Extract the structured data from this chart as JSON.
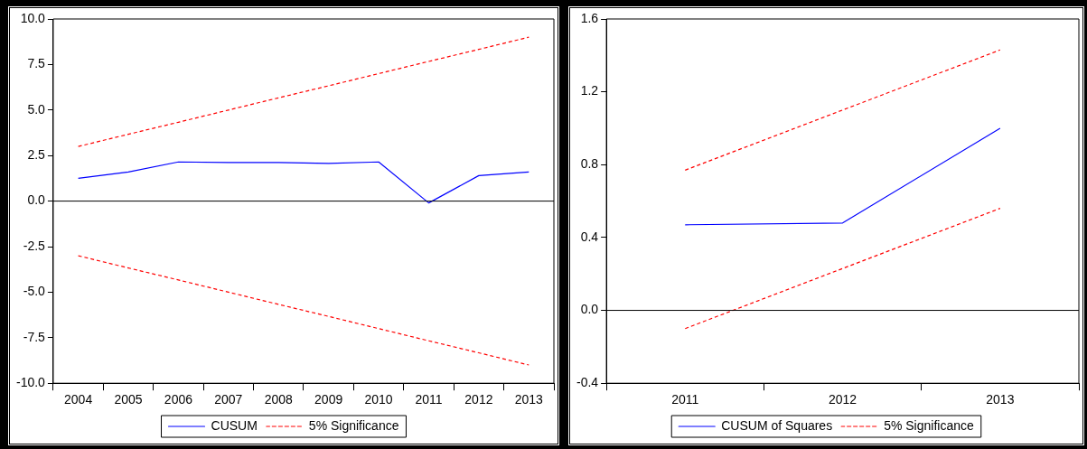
{
  "chart_data": [
    {
      "type": "line",
      "categories": [
        "2004",
        "2005",
        "2006",
        "2007",
        "2008",
        "2009",
        "2010",
        "2011",
        "2012",
        "2013"
      ],
      "series": [
        {
          "name": "CUSUM",
          "color": "#0000ff",
          "line_style": "solid",
          "values": [
            1.25,
            1.6,
            2.15,
            2.12,
            2.12,
            2.07,
            2.15,
            -0.1,
            1.4,
            1.6
          ]
        },
        {
          "name": "5% Significance",
          "color": "#ff0000",
          "line_style": "dashed",
          "values": [
            3.0,
            3.67,
            4.33,
            5.0,
            5.67,
            6.33,
            7.0,
            7.67,
            8.33,
            9.0
          ]
        },
        {
          "color": "#ff0000",
          "line_style": "dashed",
          "values": [
            -3.0,
            -3.67,
            -4.33,
            -5.0,
            -5.67,
            -6.33,
            -7.0,
            -7.67,
            -8.33,
            -9.0
          ]
        }
      ],
      "ylim": [
        -10,
        10
      ],
      "yticks": [
        {
          "value": -10,
          "label": "-10.0"
        },
        {
          "value": -7.5,
          "label": "-7.5"
        },
        {
          "value": -5,
          "label": "-5.0"
        },
        {
          "value": -2.5,
          "label": "-2.5"
        },
        {
          "value": 0,
          "label": "0.0"
        },
        {
          "value": 2.5,
          "label": "2.5"
        },
        {
          "value": 5,
          "label": "5.0"
        },
        {
          "value": 7.5,
          "label": "7.5"
        },
        {
          "value": 10,
          "label": "10.0"
        }
      ],
      "ref_lines": [
        {
          "axis": "y",
          "value": 0,
          "color": "#000000"
        }
      ],
      "grid": false,
      "legend": "bottom",
      "marker": "none"
    },
    {
      "type": "line",
      "categories": [
        "2011",
        "2012",
        "2013"
      ],
      "series": [
        {
          "name": "CUSUM of Squares",
          "color": "#0000ff",
          "line_style": "solid",
          "values": [
            0.47,
            0.48,
            1.0
          ]
        },
        {
          "name": "5% Significance",
          "color": "#ff0000",
          "line_style": "dashed",
          "values": [
            0.77,
            1.1,
            1.43
          ]
        },
        {
          "color": "#ff0000",
          "line_style": "dashed",
          "values": [
            -0.1,
            0.23,
            0.56
          ]
        }
      ],
      "ylim": [
        -0.4,
        1.6
      ],
      "yticks": [
        -0.4,
        {
          "value": 0,
          "label": "0.0"
        },
        0.4,
        0.8,
        1.2,
        1.6
      ],
      "ref_lines": [
        {
          "axis": "y",
          "value": 0,
          "color": "#000000"
        }
      ],
      "grid": false,
      "legend": "bottom",
      "marker": "none"
    }
  ]
}
